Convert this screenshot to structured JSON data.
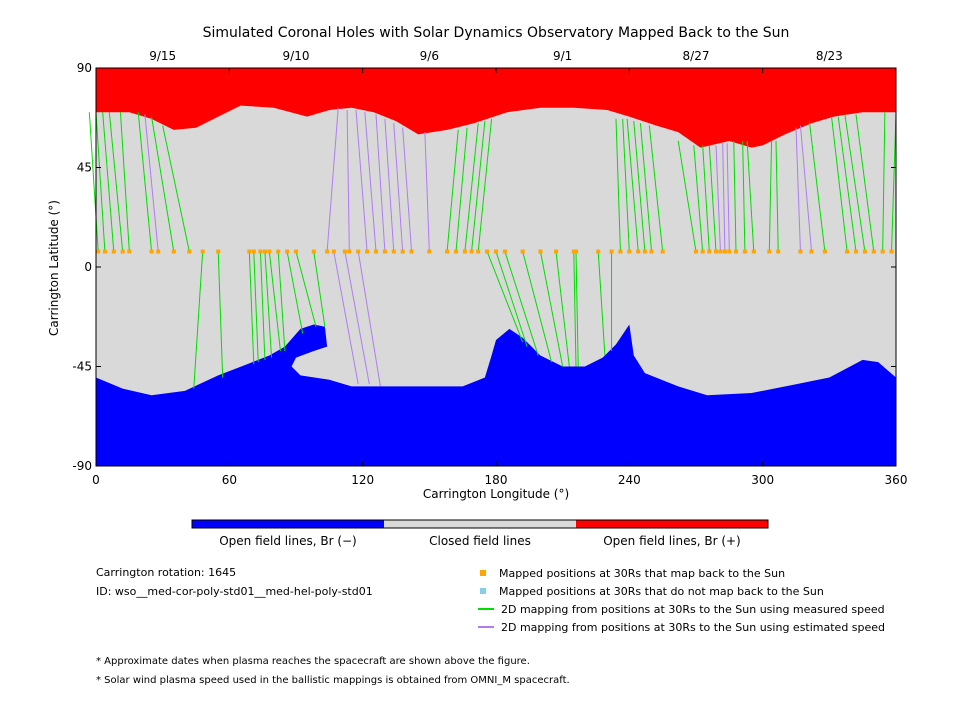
{
  "chart_data": {
    "type": "map",
    "title": "Simulated Coronal Holes with Solar Dynamics Observatory Mapped Back to the Sun",
    "xlabel": "Carrington Longitude (°)",
    "ylabel": "Carrington Latitude (°)",
    "xlim": [
      0,
      360
    ],
    "ylim": [
      -90,
      90
    ],
    "x_ticks": [
      0,
      60,
      120,
      180,
      240,
      300,
      360
    ],
    "y_ticks": [
      90,
      45,
      0,
      -45,
      -90
    ],
    "y_tick_labels": [
      "90",
      "45",
      "0",
      "-45",
      "-90"
    ],
    "top_date_ticks": [
      {
        "label": "9/15",
        "lon": 30
      },
      {
        "label": "9/10",
        "lon": 90
      },
      {
        "label": "9/6",
        "lon": 150
      },
      {
        "label": "9/1",
        "lon": 210
      },
      {
        "label": "8/27",
        "lon": 270
      },
      {
        "label": "8/23",
        "lon": 330
      }
    ],
    "colorbar": [
      {
        "label": "Open field lines, Br (−)",
        "color": "#0000ff"
      },
      {
        "label": "Closed field lines",
        "color": "#d9d9d9"
      },
      {
        "label": "Open field lines, Br (+)",
        "color": "#ff0000"
      }
    ],
    "regions": {
      "closed_color": "#d9d9d9",
      "north_open_color": "#ff0000",
      "south_open_color": "#0000ff",
      "north_hole_boundary": [
        [
          0,
          70
        ],
        [
          15,
          70
        ],
        [
          25,
          67
        ],
        [
          35,
          62
        ],
        [
          45,
          63
        ],
        [
          55,
          68
        ],
        [
          65,
          73
        ],
        [
          80,
          72
        ],
        [
          95,
          68
        ],
        [
          105,
          71
        ],
        [
          115,
          72
        ],
        [
          125,
          70
        ],
        [
          135,
          66
        ],
        [
          145,
          60
        ],
        [
          158,
          62
        ],
        [
          170,
          65
        ],
        [
          185,
          70
        ],
        [
          200,
          72
        ],
        [
          215,
          72
        ],
        [
          230,
          71
        ],
        [
          240,
          68
        ],
        [
          252,
          64
        ],
        [
          262,
          61
        ],
        [
          272,
          54
        ],
        [
          285,
          57
        ],
        [
          295,
          54
        ],
        [
          300,
          55
        ],
        [
          310,
          60
        ],
        [
          322,
          65
        ],
        [
          332,
          68
        ],
        [
          345,
          70
        ],
        [
          360,
          70
        ]
      ],
      "south_hole_boundary": [
        [
          0,
          -50
        ],
        [
          12,
          -55
        ],
        [
          25,
          -58
        ],
        [
          40,
          -56
        ],
        [
          55,
          -49
        ],
        [
          68,
          -44
        ],
        [
          78,
          -40
        ],
        [
          85,
          -36
        ],
        [
          92,
          -28
        ],
        [
          98,
          -26
        ],
        [
          103,
          -27
        ],
        [
          104,
          -36
        ],
        [
          98,
          -38
        ],
        [
          90,
          -41
        ],
        [
          88,
          -45
        ],
        [
          92,
          -49
        ],
        [
          105,
          -51
        ],
        [
          115,
          -54
        ],
        [
          135,
          -54
        ],
        [
          165,
          -54
        ],
        [
          175,
          -50
        ],
        [
          178,
          -40
        ],
        [
          180,
          -33
        ],
        [
          186,
          -28
        ],
        [
          192,
          -32
        ],
        [
          200,
          -40
        ],
        [
          210,
          -45
        ],
        [
          220,
          -45
        ],
        [
          228,
          -41
        ],
        [
          234,
          -35
        ],
        [
          240,
          -26
        ],
        [
          242,
          -40
        ],
        [
          247,
          -48
        ],
        [
          262,
          -54
        ],
        [
          275,
          -58
        ],
        [
          295,
          -57
        ],
        [
          315,
          -53
        ],
        [
          330,
          -50
        ],
        [
          345,
          -42
        ],
        [
          352,
          -43
        ],
        [
          360,
          -50
        ]
      ]
    },
    "mapped_positions_lat": 7,
    "mappings": [
      {
        "lon": 1,
        "footpoint_lon": -3,
        "footpoint_lat": 70,
        "type": "measured"
      },
      {
        "lon": 4,
        "footpoint_lon": 0,
        "footpoint_lat": 70,
        "type": "measured"
      },
      {
        "lon": 8,
        "footpoint_lon": 3,
        "footpoint_lat": 70,
        "type": "measured"
      },
      {
        "lon": 12,
        "footpoint_lon": 6,
        "footpoint_lat": 70,
        "type": "measured"
      },
      {
        "lon": 15,
        "footpoint_lon": 11,
        "footpoint_lat": 70,
        "type": "measured"
      },
      {
        "lon": 25,
        "footpoint_lon": 19,
        "footpoint_lat": 70,
        "type": "measured"
      },
      {
        "lon": 28,
        "footpoint_lon": 22,
        "footpoint_lat": 69,
        "type": "estimated"
      },
      {
        "lon": 35,
        "footpoint_lon": 25,
        "footpoint_lat": 68,
        "type": "measured"
      },
      {
        "lon": 42,
        "footpoint_lon": 30,
        "footpoint_lat": 64,
        "type": "measured"
      },
      {
        "lon": 48,
        "footpoint_lon": 44,
        "footpoint_lat": -55,
        "type": "measured"
      },
      {
        "lon": 55,
        "footpoint_lon": 57,
        "footpoint_lat": -50,
        "type": "measured"
      },
      {
        "lon": 69,
        "footpoint_lon": 71,
        "footpoint_lat": -44,
        "type": "measured"
      },
      {
        "lon": 71,
        "footpoint_lon": 73,
        "footpoint_lat": -43,
        "type": "measured"
      },
      {
        "lon": 74,
        "footpoint_lon": 76,
        "footpoint_lat": -42,
        "type": "measured"
      },
      {
        "lon": 76,
        "footpoint_lon": 79,
        "footpoint_lat": -41,
        "type": "measured"
      },
      {
        "lon": 78,
        "footpoint_lon": 83,
        "footpoint_lat": -38,
        "type": "measured"
      },
      {
        "lon": 82,
        "footpoint_lon": 85,
        "footpoint_lat": -38,
        "type": "measured"
      },
      {
        "lon": 86,
        "footpoint_lon": 93,
        "footpoint_lat": -30,
        "type": "measured"
      },
      {
        "lon": 90,
        "footpoint_lon": 99,
        "footpoint_lat": -27,
        "type": "measured"
      },
      {
        "lon": 98,
        "footpoint_lon": 103,
        "footpoint_lat": -27,
        "type": "measured"
      },
      {
        "lon": 104,
        "footpoint_lon": 109,
        "footpoint_lat": 72,
        "type": "estimated"
      },
      {
        "lon": 107,
        "footpoint_lon": 118,
        "footpoint_lat": -53,
        "type": "estimated"
      },
      {
        "lon": 112,
        "footpoint_lon": 123,
        "footpoint_lat": -53,
        "type": "estimated"
      },
      {
        "lon": 114,
        "footpoint_lon": 113,
        "footpoint_lat": 71,
        "type": "estimated"
      },
      {
        "lon": 118,
        "footpoint_lon": 128,
        "footpoint_lat": -54,
        "type": "estimated"
      },
      {
        "lon": 122,
        "footpoint_lon": 117,
        "footpoint_lat": 71,
        "type": "estimated"
      },
      {
        "lon": 126,
        "footpoint_lon": 121,
        "footpoint_lat": 70,
        "type": "estimated"
      },
      {
        "lon": 130,
        "footpoint_lon": 126,
        "footpoint_lat": 69,
        "type": "estimated"
      },
      {
        "lon": 134,
        "footpoint_lon": 130,
        "footpoint_lat": 67,
        "type": "estimated"
      },
      {
        "lon": 138,
        "footpoint_lon": 134,
        "footpoint_lat": 65,
        "type": "estimated"
      },
      {
        "lon": 142,
        "footpoint_lon": 138,
        "footpoint_lat": 63,
        "type": "estimated"
      },
      {
        "lon": 150,
        "footpoint_lon": 148,
        "footpoint_lat": 61,
        "type": "estimated"
      },
      {
        "lon": 158,
        "footpoint_lon": 163,
        "footpoint_lat": 62,
        "type": "measured"
      },
      {
        "lon": 162,
        "footpoint_lon": 167,
        "footpoint_lat": 63,
        "type": "measured"
      },
      {
        "lon": 166,
        "footpoint_lon": 172,
        "footpoint_lat": 65,
        "type": "measured"
      },
      {
        "lon": 169,
        "footpoint_lon": 175,
        "footpoint_lat": 66,
        "type": "measured"
      },
      {
        "lon": 172,
        "footpoint_lon": 178,
        "footpoint_lat": 67,
        "type": "measured"
      },
      {
        "lon": 176,
        "footpoint_lon": 192,
        "footpoint_lat": -34,
        "type": "measured"
      },
      {
        "lon": 180,
        "footpoint_lon": 194,
        "footpoint_lat": -36,
        "type": "measured"
      },
      {
        "lon": 184,
        "footpoint_lon": 199,
        "footpoint_lat": -40,
        "type": "measured"
      },
      {
        "lon": 192,
        "footpoint_lon": 205,
        "footpoint_lat": -43,
        "type": "measured"
      },
      {
        "lon": 200,
        "footpoint_lon": 210,
        "footpoint_lat": -45,
        "type": "measured"
      },
      {
        "lon": 207,
        "footpoint_lon": 213,
        "footpoint_lat": -45,
        "type": "measured"
      },
      {
        "lon": 215,
        "footpoint_lon": 216,
        "footpoint_lat": -45,
        "type": "measured"
      },
      {
        "lon": 216,
        "footpoint_lon": 217,
        "footpoint_lat": -45,
        "type": "measured"
      },
      {
        "lon": 226,
        "footpoint_lon": 229,
        "footpoint_lat": -40,
        "type": "measured"
      },
      {
        "lon": 232,
        "footpoint_lon": 232,
        "footpoint_lat": -38,
        "type": "measured"
      },
      {
        "lon": 236,
        "footpoint_lon": 234,
        "footpoint_lat": 67,
        "type": "measured"
      },
      {
        "lon": 240,
        "footpoint_lon": 237,
        "footpoint_lat": 67,
        "type": "measured"
      },
      {
        "lon": 244,
        "footpoint_lon": 239,
        "footpoint_lat": 67,
        "type": "measured"
      },
      {
        "lon": 247,
        "footpoint_lon": 242,
        "footpoint_lat": 66,
        "type": "measured"
      },
      {
        "lon": 250,
        "footpoint_lon": 245,
        "footpoint_lat": 65,
        "type": "measured"
      },
      {
        "lon": 255,
        "footpoint_lon": 249,
        "footpoint_lat": 64,
        "type": "measured"
      },
      {
        "lon": 270,
        "footpoint_lon": 262,
        "footpoint_lat": 57,
        "type": "measured"
      },
      {
        "lon": 273,
        "footpoint_lon": 269,
        "footpoint_lat": 55,
        "type": "measured"
      },
      {
        "lon": 276,
        "footpoint_lon": 273,
        "footpoint_lat": 55,
        "type": "measured"
      },
      {
        "lon": 279,
        "footpoint_lon": 276,
        "footpoint_lat": 55,
        "type": "measured"
      },
      {
        "lon": 281,
        "footpoint_lon": 279,
        "footpoint_lat": 55,
        "type": "estimated"
      },
      {
        "lon": 283,
        "footpoint_lon": 282,
        "footpoint_lat": 56,
        "type": "estimated"
      },
      {
        "lon": 285,
        "footpoint_lon": 284,
        "footpoint_lat": 56,
        "type": "estimated"
      },
      {
        "lon": 288,
        "footpoint_lon": 287,
        "footpoint_lat": 57,
        "type": "measured"
      },
      {
        "lon": 292,
        "footpoint_lon": 291,
        "footpoint_lat": 57,
        "type": "measured"
      },
      {
        "lon": 296,
        "footpoint_lon": 293,
        "footpoint_lat": 57,
        "type": "measured"
      },
      {
        "lon": 303,
        "footpoint_lon": 304,
        "footpoint_lat": 57,
        "type": "measured"
      },
      {
        "lon": 307,
        "footpoint_lon": 306,
        "footpoint_lat": 57,
        "type": "measured"
      },
      {
        "lon": 317,
        "footpoint_lon": 315,
        "footpoint_lat": 63,
        "type": "estimated"
      },
      {
        "lon": 322,
        "footpoint_lon": 317,
        "footpoint_lat": 64,
        "type": "estimated"
      },
      {
        "lon": 328,
        "footpoint_lon": 321,
        "footpoint_lat": 66,
        "type": "measured"
      },
      {
        "lon": 338,
        "footpoint_lon": 331,
        "footpoint_lat": 68,
        "type": "measured"
      },
      {
        "lon": 342,
        "footpoint_lon": 334,
        "footpoint_lat": 68,
        "type": "measured"
      },
      {
        "lon": 346,
        "footpoint_lon": 337,
        "footpoint_lat": 69,
        "type": "measured"
      },
      {
        "lon": 350,
        "footpoint_lon": 342,
        "footpoint_lat": 69,
        "type": "measured"
      },
      {
        "lon": 354,
        "footpoint_lon": 355,
        "footpoint_lat": 70,
        "type": "measured"
      },
      {
        "lon": 358,
        "footpoint_lon": 360,
        "footpoint_lat": 70,
        "type": "measured"
      }
    ],
    "colors": {
      "mapped": "#ffa500",
      "not_mapped": "#87ceeb",
      "measured": "#00dd00",
      "estimated": "#b07cf0"
    }
  },
  "info": {
    "rotation": "Carrington rotation: 1645",
    "id": "ID: wso__med-cor-poly-std01__med-hel-poly-std01"
  },
  "legend": {
    "mapped": "Mapped positions at 30Rs that map back to the Sun",
    "not_mapped": "Mapped positions at 30Rs that do not map back to the Sun",
    "measured": "2D mapping from positions at 30Rs to the Sun using measured speed",
    "estimated": "2D mapping from positions at 30Rs to the Sun using estimated speed"
  },
  "footnotes": {
    "dates": "* Approximate dates when plasma reaches the spacecraft are shown above the figure.",
    "speed": "* Solar wind plasma speed used in the ballistic mappings is obtained from OMNI_M spacecraft."
  }
}
